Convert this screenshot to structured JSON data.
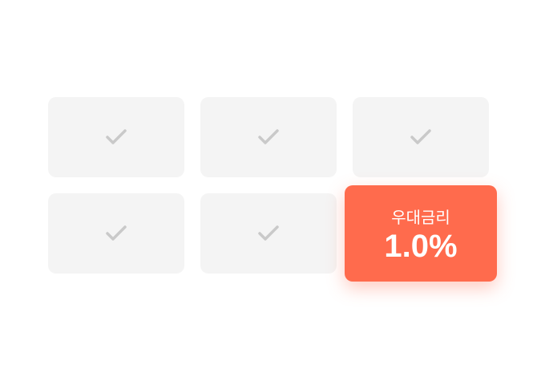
{
  "tiles": [
    {
      "icon": "check-icon"
    },
    {
      "icon": "check-icon"
    },
    {
      "icon": "check-icon"
    },
    {
      "icon": "check-icon"
    },
    {
      "icon": "check-icon"
    }
  ],
  "highlight": {
    "label": "우대금리",
    "value": "1.0%",
    "color": "#ff6b4d"
  },
  "colors": {
    "tile_background": "#f4f4f4",
    "check": "#c9c9c9"
  }
}
